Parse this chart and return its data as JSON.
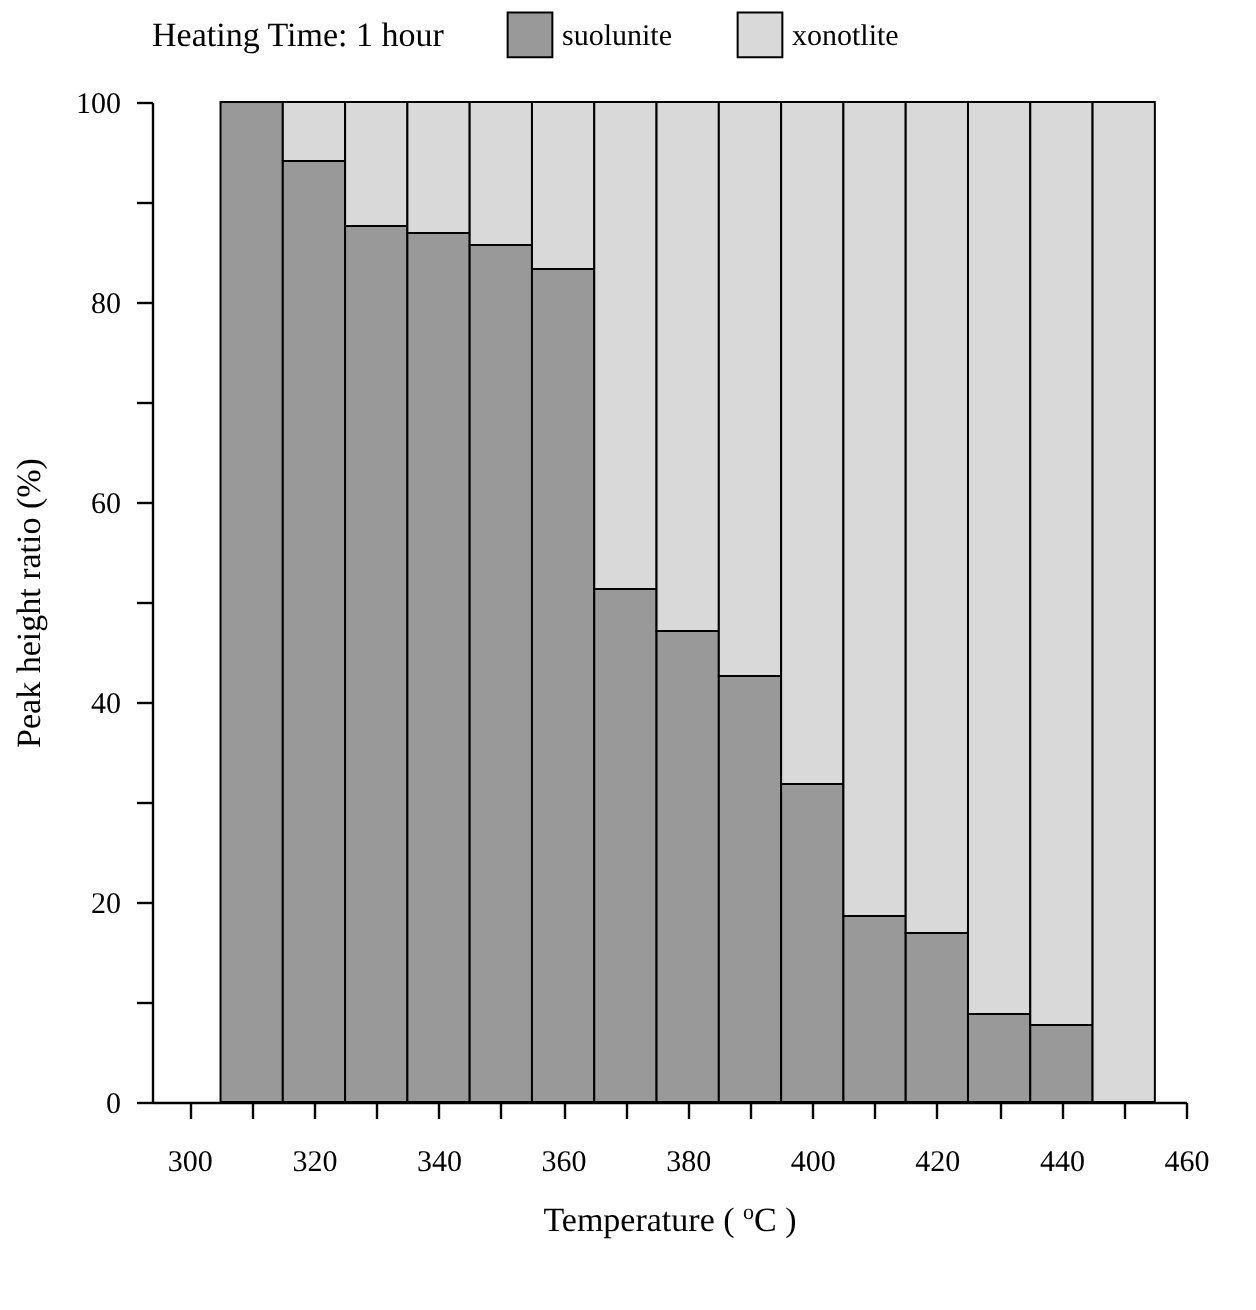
{
  "chart_data": {
    "type": "bar",
    "stacked": true,
    "legend_title": "Heating Time: 1 hour",
    "legend": "top",
    "xlabel": "Temperature ( $^{o}$C )",
    "ylabel": "Peak height ratio (%)",
    "x": [
      310,
      320,
      330,
      340,
      350,
      360,
      370,
      380,
      390,
      400,
      410,
      420,
      430,
      440,
      450
    ],
    "series": [
      {
        "name": "suolunite",
        "color": "#999999",
        "values": [
          100,
          94.1,
          87.6,
          86.9,
          85.7,
          83.3,
          51.3,
          47.1,
          42.6,
          31.8,
          18.6,
          16.9,
          8.8,
          7.7,
          0
        ]
      },
      {
        "name": "xonotlite",
        "color": "#d9d9d9",
        "values": [
          0,
          5.9,
          12.4,
          13.1,
          14.3,
          16.7,
          48.7,
          52.9,
          57.4,
          68.2,
          81.4,
          83.1,
          91.2,
          92.3,
          100
        ]
      }
    ],
    "xlim": [
      294,
      460
    ],
    "xticks": [
      300,
      {
        "value": 310,
        "label": null
      },
      320,
      {
        "value": 330,
        "label": null
      },
      340,
      {
        "value": 350,
        "label": null
      },
      360,
      {
        "value": 370,
        "label": null
      },
      380,
      {
        "value": 390,
        "label": null
      },
      400,
      {
        "value": 410,
        "label": null
      },
      420,
      {
        "value": 430,
        "label": null
      },
      440,
      {
        "value": 450,
        "label": null
      },
      460
    ],
    "ylim": [
      0,
      100
    ],
    "yticks": [
      0,
      {
        "value": 10,
        "label": null
      },
      20,
      {
        "value": 30,
        "label": null
      },
      40,
      {
        "value": 50,
        "label": null
      },
      60,
      {
        "value": 70,
        "label": null
      },
      80,
      {
        "value": 90,
        "label": null
      },
      100
    ]
  }
}
